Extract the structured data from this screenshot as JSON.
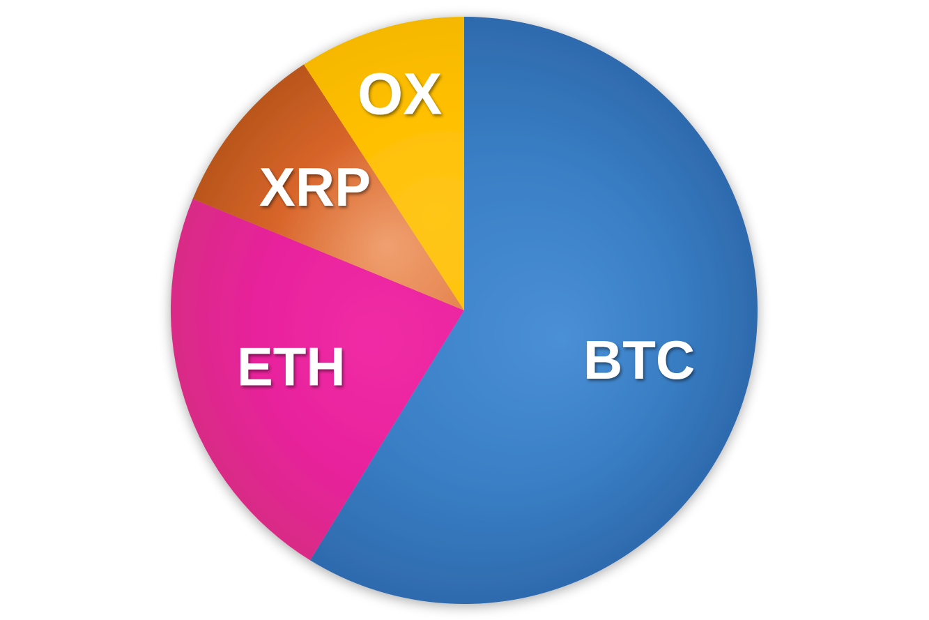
{
  "chart_data": {
    "type": "pie",
    "title": "",
    "start_angle_deg": 0,
    "direction": "clockwise",
    "legend": "none",
    "slices": [
      {
        "label": "BTC",
        "value": 58.8,
        "color": "#3a7fc5",
        "color_dark": "#2e6aad",
        "color_light": "#4a90d6"
      },
      {
        "label": "ETH",
        "value": 22.4,
        "color": "#e8229c",
        "color_dark": "#d92b86",
        "color_light": "#f02ba4"
      },
      {
        "label": "XRP",
        "value": 9.6,
        "color": "#d8652a",
        "color_dark": "#b9561c",
        "color_light": "#f0a070"
      },
      {
        "label": "OX",
        "value": 9.2,
        "color": "#ffbf00",
        "color_dark": "#f5b800",
        "color_light": "#ffc61a"
      }
    ]
  }
}
